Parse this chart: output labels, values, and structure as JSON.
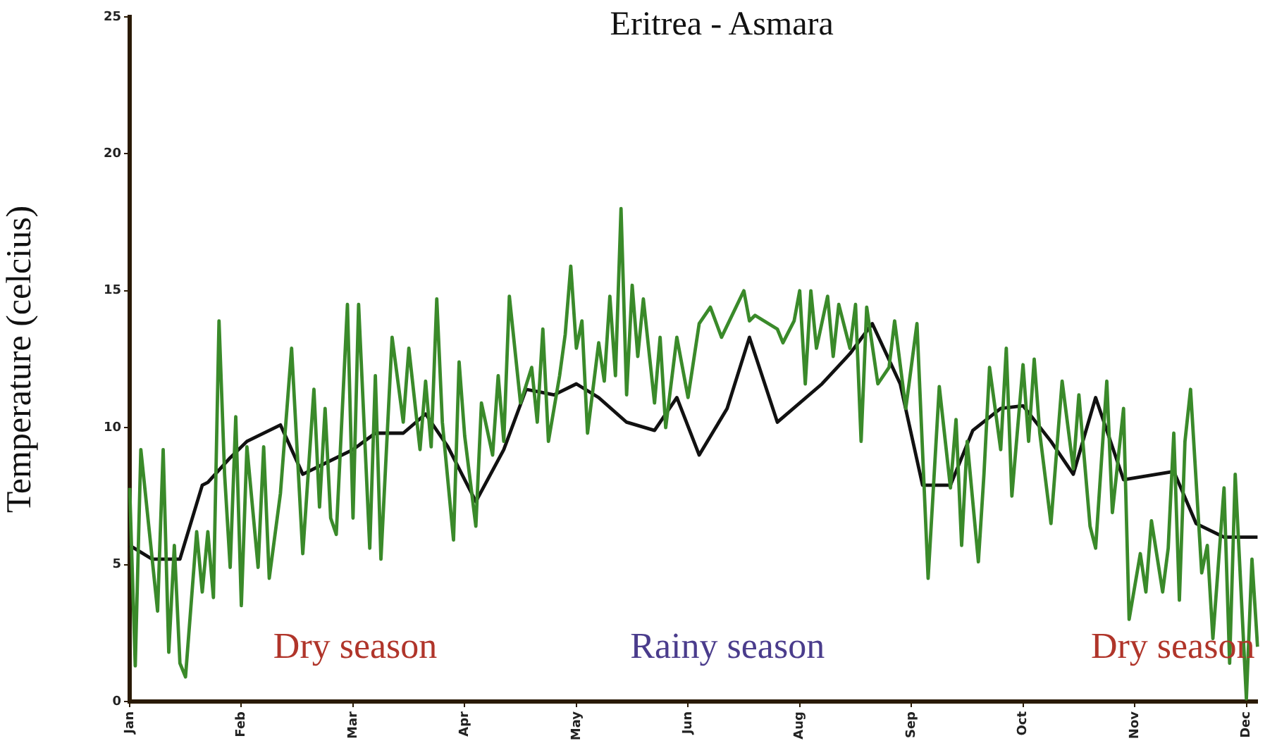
{
  "chart_data": {
    "type": "line",
    "title": "Eritrea - Asmara",
    "ylabel": "Temperature (celcius)",
    "categories": [
      "Jan",
      null,
      null,
      null,
      null,
      null,
      null,
      null,
      null,
      null,
      null,
      null,
      null,
      null,
      null,
      null,
      null,
      null,
      null,
      null,
      "Feb",
      null,
      null,
      null,
      null,
      null,
      null,
      null,
      null,
      null,
      null,
      null,
      null,
      null,
      null,
      null,
      null,
      null,
      null,
      null,
      "Mar",
      null,
      null,
      null,
      null,
      null,
      null,
      null,
      null,
      null,
      null,
      null,
      null,
      null,
      null,
      null,
      null,
      null,
      null,
      null,
      "Apr",
      null,
      null,
      null,
      null,
      null,
      null,
      null,
      null,
      null,
      null,
      null,
      null,
      null,
      null,
      null,
      null,
      null,
      null,
      null,
      "May",
      null,
      null,
      null,
      null,
      null,
      null,
      null,
      null,
      null,
      null,
      null,
      null,
      null,
      null,
      null,
      null,
      null,
      null,
      null,
      "Jun",
      null,
      null,
      null,
      null,
      null,
      null,
      null,
      null,
      null,
      null,
      null,
      null,
      null,
      null,
      null,
      null,
      null,
      null,
      null,
      "Aug",
      null,
      null,
      null,
      null,
      null,
      null,
      null,
      null,
      null,
      null,
      null,
      null,
      null,
      null,
      null,
      null,
      null,
      null,
      null,
      "Sep",
      null,
      null,
      null,
      null,
      null,
      null,
      null,
      null,
      null,
      null,
      null,
      null,
      null,
      null,
      null,
      null,
      null,
      null,
      null,
      "Oct",
      null,
      null,
      null,
      null,
      null,
      null,
      null,
      null,
      null,
      null,
      null,
      null,
      null,
      null,
      null,
      null,
      null,
      null,
      null,
      "Nov",
      null,
      null,
      null,
      null,
      null,
      null,
      null,
      null,
      null,
      null,
      null,
      null,
      null,
      null,
      null,
      null,
      null,
      null,
      null,
      "Dec",
      null,
      null
    ],
    "ylim": [
      0,
      25
    ],
    "yticks": [
      0,
      5,
      10,
      15,
      20,
      25
    ],
    "grid": false,
    "legend": false,
    "marker": "none",
    "line_style": "solid",
    "series": [
      {
        "color": "#3a8a2a",
        "values": [
          7.8,
          1.3,
          9.2,
          null,
          null,
          3.3,
          9.2,
          1.8,
          5.7,
          1.4,
          0.9,
          null,
          6.2,
          4.0,
          6.2,
          3.8,
          13.9,
          8.3,
          4.9,
          10.4,
          3.5,
          9.3,
          null,
          4.9,
          9.3,
          4.5,
          null,
          7.6,
          null,
          12.9,
          null,
          5.4,
          null,
          11.4,
          7.1,
          10.7,
          6.7,
          6.1,
          null,
          14.5,
          6.7,
          14.5,
          null,
          5.6,
          11.9,
          5.2,
          null,
          13.3,
          null,
          10.2,
          12.9,
          null,
          9.2,
          11.7,
          9.3,
          14.7,
          10.2,
          null,
          5.9,
          12.4,
          9.7,
          null,
          6.4,
          10.9,
          null,
          9.0,
          11.9,
          9.5,
          14.8,
          null,
          10.9,
          null,
          12.2,
          10.2,
          13.6,
          9.5,
          null,
          11.9,
          13.4,
          15.9,
          12.9,
          13.9,
          9.8,
          null,
          13.1,
          11.7,
          14.8,
          11.9,
          18.0,
          11.2,
          15.2,
          12.6,
          14.7,
          null,
          10.9,
          13.3,
          10.0,
          null,
          13.3,
          null,
          11.1,
          null,
          13.8,
          null,
          14.4,
          null,
          13.3,
          null,
          null,
          null,
          15.0,
          13.9,
          14.1,
          null,
          null,
          null,
          13.6,
          13.1,
          null,
          13.9,
          15.0,
          11.6,
          15.0,
          12.9,
          null,
          14.8,
          12.6,
          14.5,
          null,
          12.9,
          14.5,
          9.5,
          14.4,
          null,
          11.6,
          null,
          12.2,
          13.9,
          null,
          10.7,
          null,
          13.8,
          null,
          4.5,
          null,
          11.5,
          null,
          7.8,
          10.3,
          5.7,
          9.5,
          null,
          5.1,
          8.3,
          12.2,
          null,
          9.2,
          12.9,
          7.5,
          null,
          12.3,
          9.5,
          12.5,
          9.8,
          null,
          6.5,
          null,
          11.7,
          null,
          8.5,
          11.2,
          null,
          6.4,
          5.6,
          null,
          11.7,
          6.9,
          null,
          10.7,
          3.0,
          null,
          5.4,
          4.0,
          6.6,
          null,
          4.0,
          5.6,
          9.8,
          3.7,
          9.5,
          11.4,
          null,
          4.7,
          5.7,
          2.3,
          null,
          7.8,
          1.4,
          8.3,
          null,
          0.1,
          5.2,
          2.0
        ]
      },
      {
        "color": "#111111",
        "values": [
          5.7,
          null,
          null,
          null,
          5.2,
          null,
          null,
          null,
          null,
          5.2,
          null,
          null,
          null,
          7.9,
          8.0,
          null,
          null,
          null,
          8.9,
          null,
          null,
          9.5,
          null,
          null,
          null,
          null,
          null,
          10.1,
          null,
          null,
          null,
          8.3,
          null,
          null,
          null,
          8.7,
          null,
          null,
          null,
          null,
          9.2,
          null,
          null,
          null,
          9.8,
          null,
          null,
          null,
          null,
          9.8,
          null,
          null,
          null,
          10.5,
          null,
          null,
          null,
          9.3,
          null,
          null,
          null,
          null,
          7.3,
          null,
          null,
          null,
          null,
          9.2,
          null,
          null,
          null,
          11.4,
          null,
          null,
          null,
          null,
          11.2,
          null,
          null,
          null,
          11.6,
          null,
          null,
          null,
          11.1,
          null,
          null,
          null,
          null,
          10.2,
          null,
          null,
          null,
          null,
          9.9,
          null,
          null,
          null,
          11.1,
          null,
          null,
          null,
          9.0,
          null,
          null,
          null,
          null,
          10.7,
          null,
          null,
          null,
          13.3,
          null,
          null,
          null,
          null,
          10.2,
          null,
          null,
          null,
          null,
          null,
          null,
          null,
          11.6,
          null,
          null,
          null,
          null,
          12.7,
          null,
          null,
          null,
          13.8,
          null,
          null,
          null,
          null,
          11.6,
          null,
          null,
          null,
          7.9,
          null,
          null,
          null,
          null,
          7.9,
          null,
          null,
          null,
          9.9,
          null,
          null,
          null,
          null,
          10.7,
          null,
          null,
          null,
          10.8,
          null,
          null,
          null,
          null,
          9.5,
          null,
          null,
          null,
          8.3,
          null,
          null,
          null,
          11.1,
          null,
          null,
          null,
          null,
          8.1,
          null,
          null,
          null,
          null,
          null,
          null,
          null,
          null,
          8.4,
          null,
          null,
          null,
          6.5,
          null,
          null,
          null,
          null,
          6.0,
          null,
          null,
          null,
          6.0,
          null,
          6.0
        ]
      }
    ],
    "annotations": [
      "Dry season",
      "Rainy season",
      "Dry season"
    ]
  }
}
